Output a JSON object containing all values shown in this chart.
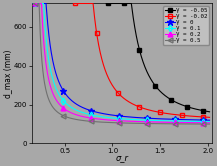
{
  "xlabel": "σ_r",
  "ylabel": "d_max (mm)",
  "xlim": [
    0.15,
    2.05
  ],
  "ylim": [
    0,
    720
  ],
  "yticks": [
    0,
    200,
    400,
    600
  ],
  "xticks": [
    0.5,
    1.0,
    1.5,
    2.0
  ],
  "bg_color": "#a8a8a8",
  "legend_labels": [
    "γ = -0.05",
    "γ = -0.02",
    "γ = 0",
    "γ = 0.1",
    "γ = 0.2",
    "γ = 0.5"
  ],
  "colors": [
    "#000000",
    "#ff0000",
    "#0000ff",
    "#00ffff",
    "#ff00ff",
    "#707070"
  ],
  "markers": [
    "s",
    "s",
    "*",
    "d",
    "^",
    "<"
  ],
  "fillstyles": [
    "full",
    "none",
    "full",
    "none",
    "full",
    "none"
  ],
  "series_params": [
    [
      0.935,
      55,
      1.8,
      115
    ],
    [
      0.595,
      40,
      1.7,
      112
    ],
    [
      0.175,
      28,
      1.5,
      108
    ],
    [
      0.175,
      20,
      1.5,
      104
    ],
    [
      0.175,
      14,
      1.5,
      100
    ],
    [
      0.175,
      8,
      1.5,
      96
    ]
  ]
}
